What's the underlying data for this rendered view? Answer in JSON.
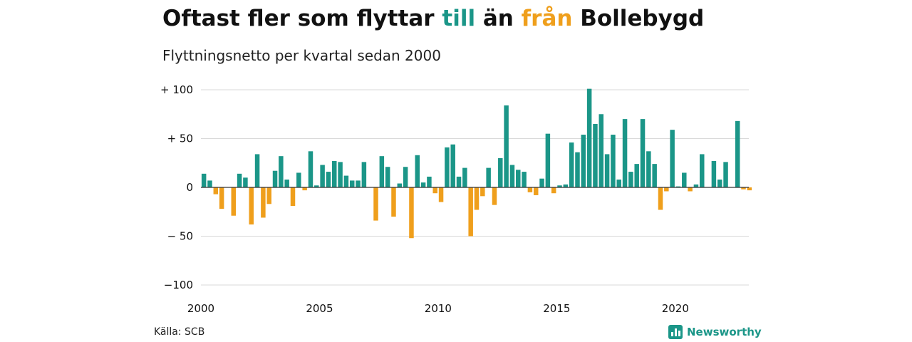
{
  "title": {
    "part1": "Oftast fler som flyttar ",
    "in_word": "till",
    "part2": " än ",
    "out_word": "från",
    "part3": " Bollebygd"
  },
  "subtitle": "Flyttningsnetto per kvartal sedan 2000",
  "source": "Källa: SCB",
  "brand": {
    "name": "Newsworthy",
    "icon": "bar-chart-logo-icon"
  },
  "colors": {
    "positive": "#1b9688",
    "negative": "#ef9f1c",
    "grid": "#d9d9d9",
    "zero_line": "#333333"
  },
  "chart_data": {
    "type": "bar",
    "start_year": 2000,
    "start_quarter": 1,
    "frequency": "quarterly",
    "values": [
      14,
      7,
      -7,
      -22,
      0,
      -29,
      14,
      10,
      -38,
      34,
      -31,
      -17,
      17,
      32,
      8,
      -19,
      15,
      -3,
      37,
      2,
      23,
      16,
      27,
      26,
      12,
      7,
      7,
      26,
      0,
      -34,
      32,
      21,
      -30,
      4,
      21,
      -52,
      33,
      5,
      11,
      -6,
      -15,
      41,
      44,
      11,
      20,
      -50,
      -23,
      -9,
      20,
      -18,
      30,
      84,
      23,
      18,
      16,
      -5,
      -8,
      9,
      55,
      -6,
      2,
      3,
      46,
      36,
      54,
      101,
      65,
      75,
      34,
      54,
      8,
      70,
      16,
      24,
      70,
      37,
      24,
      -23,
      -4,
      59,
      1,
      15,
      -4,
      3,
      34,
      0,
      27,
      8,
      26,
      0,
      68,
      -2,
      -3
    ],
    "y_ticks": [
      100,
      50,
      0,
      -50,
      -100
    ],
    "y_tick_labels": [
      "+ 100",
      "+  50",
      "0",
      "− 50",
      "−100"
    ],
    "x_ticks": [
      2000,
      2005,
      2010,
      2015,
      2020
    ],
    "x_tick_labels": [
      "2000",
      "2005",
      "2010",
      "2015",
      "2020"
    ],
    "ylim": [
      -100,
      100
    ],
    "grid": true,
    "legend": "none"
  }
}
